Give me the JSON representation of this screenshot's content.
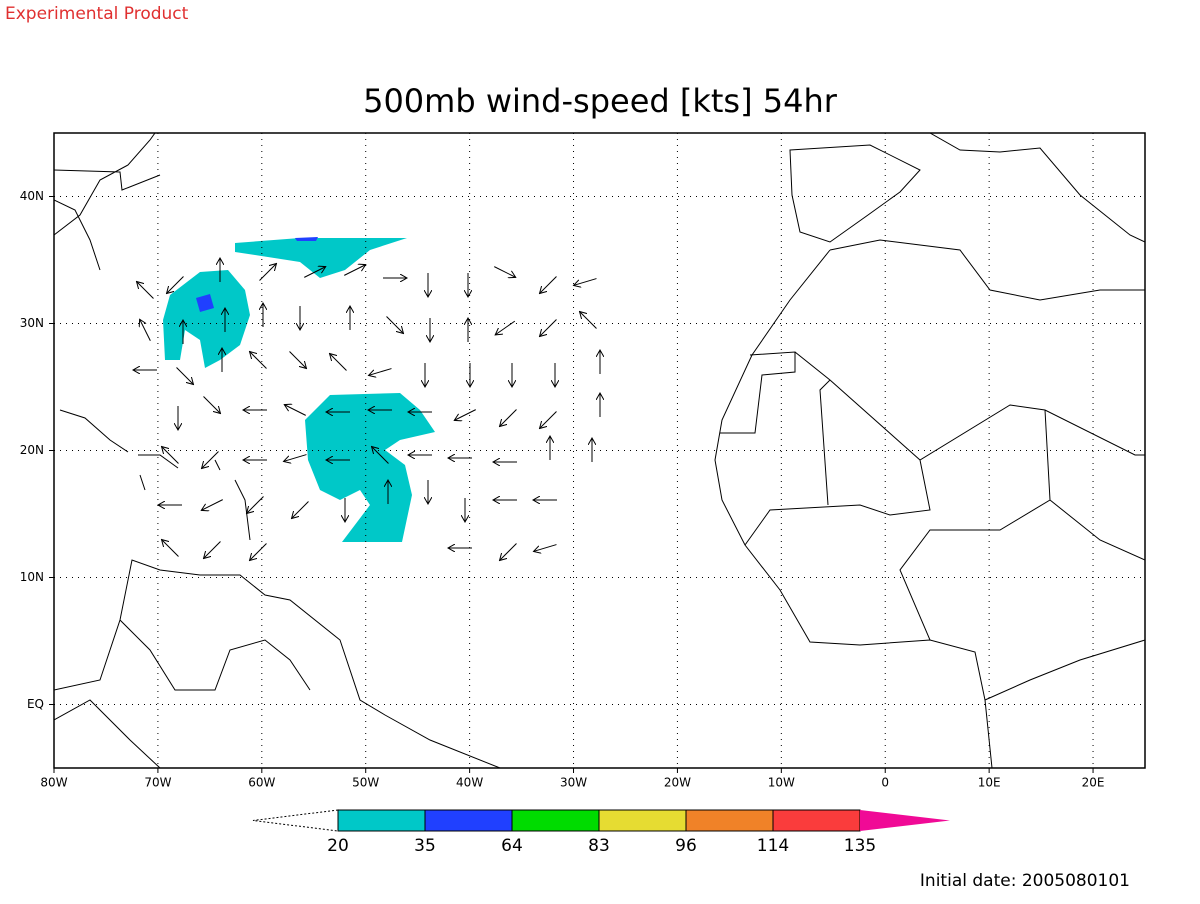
{
  "header": "Experimental Product",
  "title": "500mb wind-speed [kts] 54hr",
  "map": {
    "xlim": [
      -80,
      25
    ],
    "ylim": [
      -5,
      45
    ],
    "xticks": [
      {
        "value": -80,
        "label": "80W"
      },
      {
        "value": -70,
        "label": "70W"
      },
      {
        "value": -60,
        "label": "60W"
      },
      {
        "value": -50,
        "label": "50W"
      },
      {
        "value": -40,
        "label": "40W"
      },
      {
        "value": -30,
        "label": "30W"
      },
      {
        "value": -20,
        "label": "20W"
      },
      {
        "value": -10,
        "label": "10W"
      },
      0,
      {
        "value": 10,
        "label": "10E"
      },
      {
        "value": 20,
        "label": "20E"
      }
    ],
    "yticks": [
      {
        "value": 0,
        "label": "EQ"
      },
      {
        "value": 10,
        "label": "10N"
      },
      {
        "value": 20,
        "label": "20N"
      },
      {
        "value": 30,
        "label": "30N"
      },
      {
        "value": 40,
        "label": "40N"
      }
    ],
    "grid": true
  },
  "colorbar": {
    "levels": [
      20,
      35,
      64,
      83,
      96,
      114,
      135
    ],
    "colors": [
      "#ffffff",
      "#00c8c8",
      "#2040ff",
      "#00dc00",
      "#e6dc32",
      "#f08228",
      "#fa3c3c",
      "#f00a96"
    ]
  },
  "footer": "Initial date: 2005080101"
}
